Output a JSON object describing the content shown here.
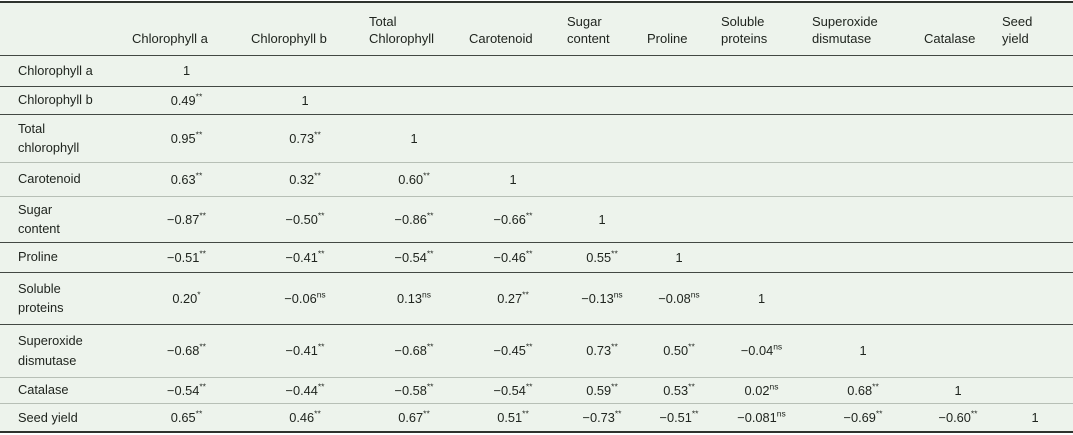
{
  "colors": {
    "background": "#edf3ec",
    "strong_line": "#434843",
    "light_line": "#b7bfb6",
    "outer_border": "#2e332e",
    "text": "#20251f"
  },
  "table": {
    "columns": [
      "",
      "Chlorophyll a",
      "Chlorophyll b",
      "Total\nChlorophyll",
      "Carotenoid",
      "Sugar\ncontent",
      "Proline",
      "Soluble\nproteins",
      "Superoxide\ndismutase",
      "Catalase",
      "Seed\nyield"
    ],
    "rows": [
      {
        "label": "Chlorophyll a",
        "cells": [
          {
            "v": "1",
            "sup": ""
          }
        ]
      },
      {
        "label": "Chlorophyll b",
        "cells": [
          {
            "v": "0.49",
            "sup": "**"
          },
          {
            "v": "1",
            "sup": ""
          }
        ]
      },
      {
        "label": "Total\nchlorophyll",
        "cells": [
          {
            "v": "0.95",
            "sup": "**"
          },
          {
            "v": "0.73",
            "sup": "**"
          },
          {
            "v": "1",
            "sup": ""
          }
        ]
      },
      {
        "label": "Carotenoid",
        "cells": [
          {
            "v": "0.63",
            "sup": "**"
          },
          {
            "v": "0.32",
            "sup": "**"
          },
          {
            "v": "0.60",
            "sup": "**"
          },
          {
            "v": "1",
            "sup": ""
          }
        ]
      },
      {
        "label": "Sugar\ncontent",
        "cells": [
          {
            "v": "−0.87",
            "sup": "**"
          },
          {
            "v": "−0.50",
            "sup": "**"
          },
          {
            "v": "−0.86",
            "sup": "**"
          },
          {
            "v": "−0.66",
            "sup": "**"
          },
          {
            "v": "1",
            "sup": ""
          }
        ]
      },
      {
        "label": "Proline",
        "cells": [
          {
            "v": "−0.51",
            "sup": "**"
          },
          {
            "v": "−0.41",
            "sup": "**"
          },
          {
            "v": "−0.54",
            "sup": "**"
          },
          {
            "v": "−0.46",
            "sup": "**"
          },
          {
            "v": "0.55",
            "sup": "**"
          },
          {
            "v": "1",
            "sup": ""
          }
        ]
      },
      {
        "label": "Soluble\nproteins",
        "cells": [
          {
            "v": "0.20",
            "sup": "*"
          },
          {
            "v": "−0.06",
            "sup": "ns"
          },
          {
            "v": "0.13",
            "sup": "ns"
          },
          {
            "v": "0.27",
            "sup": "**"
          },
          {
            "v": "−0.13",
            "sup": "ns"
          },
          {
            "v": "−0.08",
            "sup": "ns"
          },
          {
            "v": "1",
            "sup": ""
          }
        ]
      },
      {
        "label": "Superoxide\ndismutase",
        "cells": [
          {
            "v": "−0.68",
            "sup": "**"
          },
          {
            "v": "−0.41",
            "sup": "**"
          },
          {
            "v": "−0.68",
            "sup": "**"
          },
          {
            "v": "−0.45",
            "sup": "**"
          },
          {
            "v": "0.73",
            "sup": "**"
          },
          {
            "v": "0.50",
            "sup": "**"
          },
          {
            "v": "−0.04",
            "sup": "ns"
          },
          {
            "v": "1",
            "sup": ""
          }
        ]
      },
      {
        "label": "Catalase",
        "cells": [
          {
            "v": "−0.54",
            "sup": "**"
          },
          {
            "v": "−0.44",
            "sup": "**"
          },
          {
            "v": "−0.58",
            "sup": "**"
          },
          {
            "v": "−0.54",
            "sup": "**"
          },
          {
            "v": "0.59",
            "sup": "**"
          },
          {
            "v": "0.53",
            "sup": "**"
          },
          {
            "v": "0.02",
            "sup": "ns"
          },
          {
            "v": "0.68",
            "sup": "**"
          },
          {
            "v": "1",
            "sup": ""
          }
        ]
      },
      {
        "label": "Seed yield",
        "cells": [
          {
            "v": "0.65",
            "sup": "**"
          },
          {
            "v": "0.46",
            "sup": "**"
          },
          {
            "v": "0.67",
            "sup": "**"
          },
          {
            "v": "0.51",
            "sup": "**"
          },
          {
            "v": "−0.73",
            "sup": "**"
          },
          {
            "v": "−0.51",
            "sup": "**"
          },
          {
            "v": "−0.081",
            "sup": "ns"
          },
          {
            "v": "−0.69",
            "sup": "**"
          },
          {
            "v": "−0.60",
            "sup": "**"
          },
          {
            "v": "1",
            "sup": ""
          }
        ]
      }
    ]
  }
}
